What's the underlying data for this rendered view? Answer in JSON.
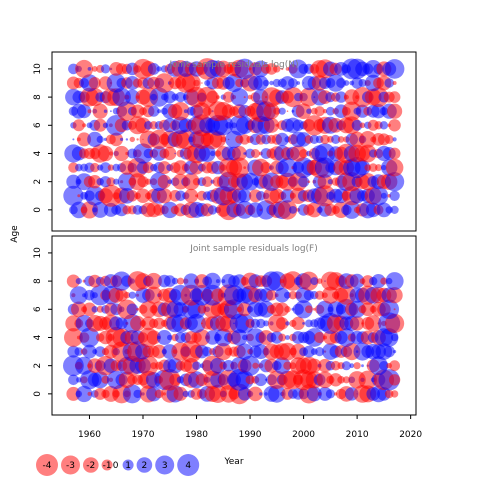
{
  "chart_data": {
    "type": "scatter",
    "subtype": "bubble-residual",
    "panels": [
      {
        "title": "Joint sample residuals log(N)",
        "xlim": [
          1953,
          2021
        ],
        "ylim": [
          -1.5,
          11.2
        ],
        "x_ticks": [],
        "y_ticks": [
          0,
          2,
          4,
          6,
          8,
          10
        ],
        "years": [
          1957,
          2017
        ],
        "ages": [
          0,
          10
        ],
        "seed": 7
      },
      {
        "title": "Joint sample residuals log(F)",
        "xlim": [
          1953,
          2021
        ],
        "ylim": [
          -1.5,
          11.2
        ],
        "x_ticks": [
          1960,
          1970,
          1980,
          1990,
          2000,
          2010,
          2020
        ],
        "y_ticks": [
          0,
          2,
          4,
          6,
          8,
          10
        ],
        "years": [
          1957,
          2017
        ],
        "ages": [
          0,
          8
        ],
        "seed": 23
      }
    ],
    "xlabel": "Year",
    "ylabel": "Age",
    "colors": {
      "positive": "#0000ff",
      "negative": "#ff0000",
      "alpha": 0.5
    },
    "legend": {
      "placement": "bottom-left",
      "values": [
        -4,
        -3,
        -2,
        -1,
        0,
        1,
        2,
        3,
        4
      ]
    }
  }
}
